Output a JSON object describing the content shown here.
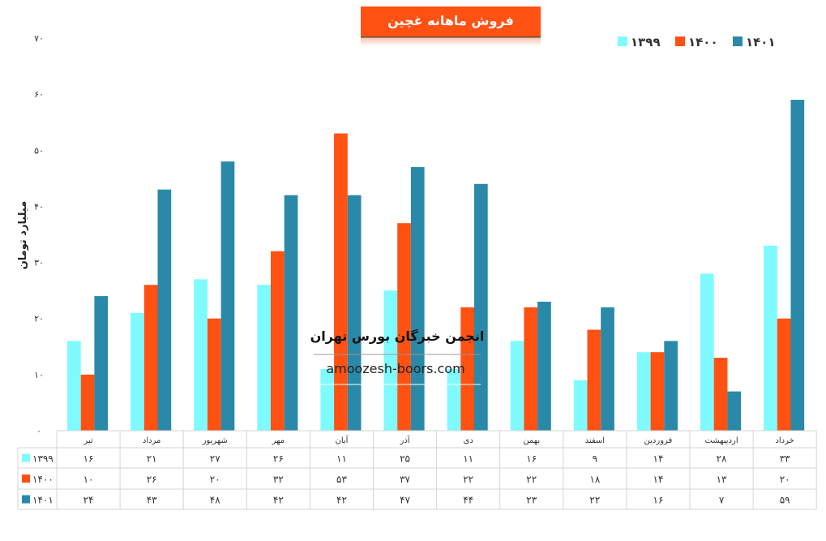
{
  "chart_data": {
    "type": "bar",
    "title": "فروش ماهانه غچین",
    "ylabel": "میلیارد تومان",
    "xlabel": "",
    "ylim": [
      0,
      70
    ],
    "yticks": [
      "۰",
      "۱۰",
      "۲۰",
      "۳۰",
      "۴۰",
      "۵۰",
      "۶۰",
      "۷۰"
    ],
    "grid": false,
    "legend_position": "top-right",
    "categories": [
      "تیر",
      "مرداد",
      "شهریور",
      "مهر",
      "آبان",
      "آذر",
      "دی",
      "بهمن",
      "اسفند",
      "فروردین",
      "اردیبهشت",
      "خرداد"
    ],
    "series": [
      {
        "name": "۱۳۹۹",
        "color": "#7FFBFF",
        "values": [
          16,
          21,
          27,
          26,
          11,
          25,
          11,
          16,
          9,
          14,
          28,
          33
        ],
        "labels": [
          "۱۶",
          "۲۱",
          "۲۷",
          "۲۶",
          "۱۱",
          "۲۵",
          "۱۱",
          "۱۶",
          "۹",
          "۱۴",
          "۲۸",
          "۳۳"
        ]
      },
      {
        "name": "۱۴۰۰",
        "color": "#FF5112",
        "values": [
          10,
          26,
          20,
          32,
          53,
          37,
          22,
          22,
          18,
          14,
          13,
          20
        ],
        "labels": [
          "۱۰",
          "۲۶",
          "۲۰",
          "۳۲",
          "۵۳",
          "۳۷",
          "۲۲",
          "۲۲",
          "۱۸",
          "۱۴",
          "۱۳",
          "۲۰"
        ]
      },
      {
        "name": "۱۴۰۱",
        "color": "#2A89A8",
        "values": [
          24,
          43,
          48,
          42,
          42,
          47,
          44,
          23,
          22,
          16,
          7,
          59
        ],
        "labels": [
          "۲۴",
          "۴۳",
          "۴۸",
          "۴۲",
          "۴۲",
          "۴۷",
          "۴۴",
          "۲۳",
          "۲۲",
          "۱۶",
          "۷",
          "۵۹"
        ]
      }
    ],
    "data_table": true
  },
  "watermark": {
    "title": "انجمن خبرگان بورس تهران",
    "url": "amoozesh-boors.com"
  }
}
